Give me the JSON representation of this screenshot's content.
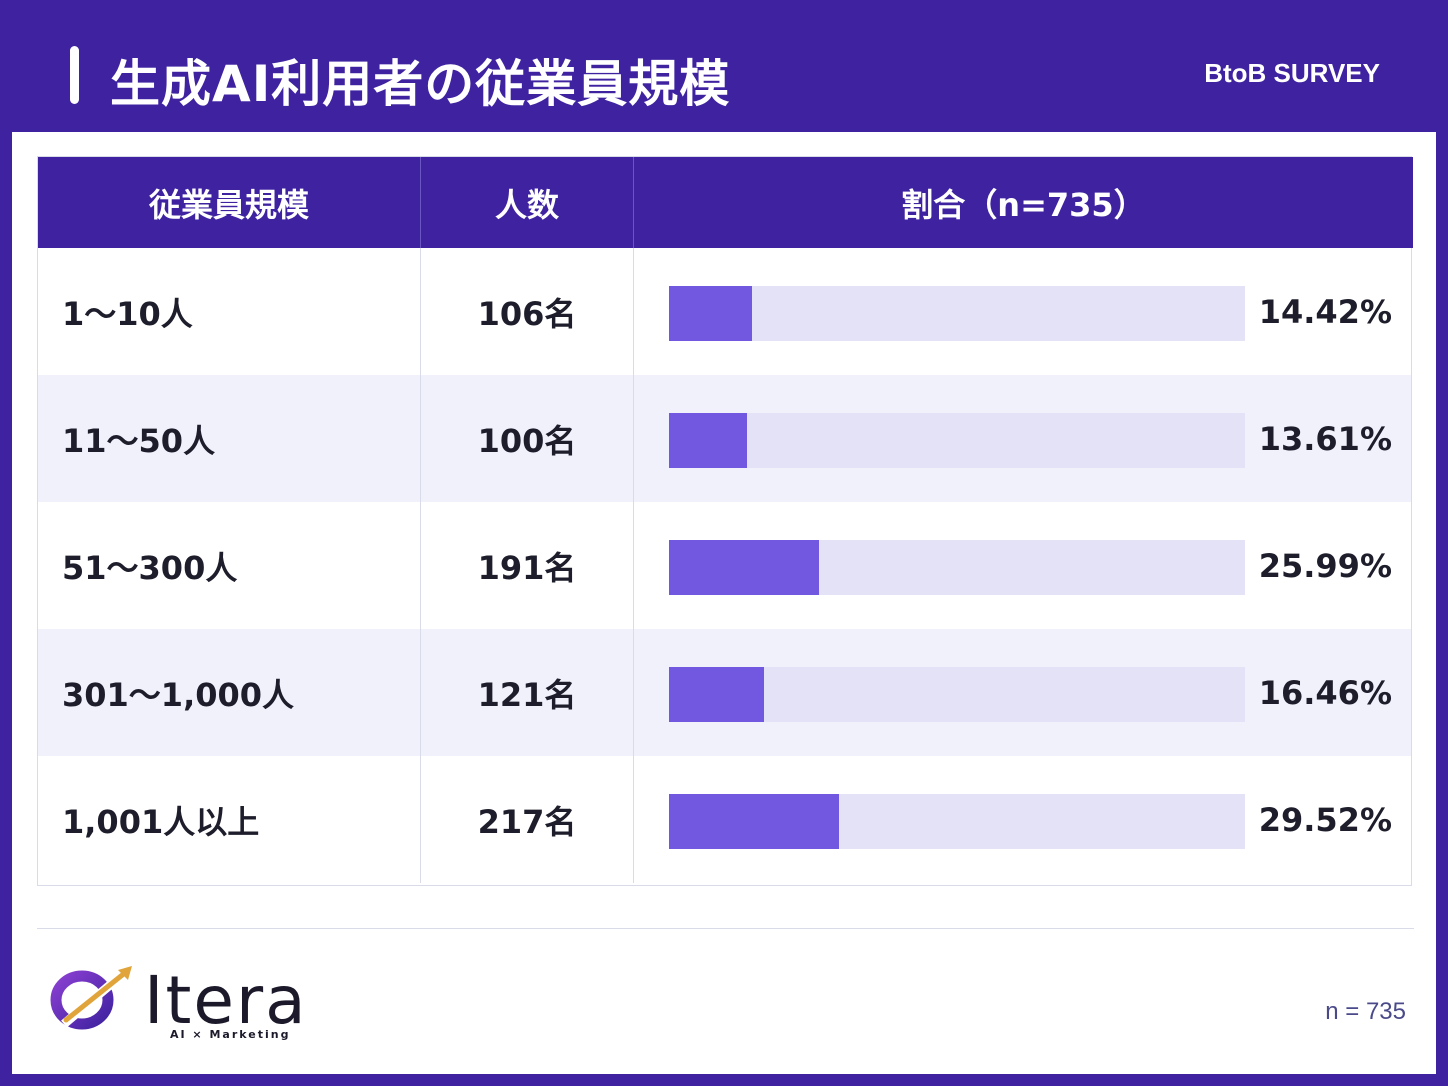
{
  "header": {
    "title": "生成AI利用者の従業員規模",
    "tag": "BtoB SURVEY"
  },
  "table": {
    "columns": [
      "従業員規模",
      "人数",
      "割合（n=735）"
    ]
  },
  "chart_data": {
    "type": "bar",
    "orientation": "horizontal",
    "title": "生成AI利用者の従業員規模",
    "categories": [
      "1〜10人",
      "11〜50人",
      "51〜300人",
      "301〜1,000人",
      "1,001人以上"
    ],
    "counts": [
      "106名",
      "100名",
      "191名",
      "121名",
      "217名"
    ],
    "values": [
      14.42,
      13.61,
      25.99,
      16.46,
      29.52
    ],
    "value_labels": [
      "14.42%",
      "13.61%",
      "25.99%",
      "16.46%",
      "29.52%"
    ],
    "xlim": [
      0,
      100
    ],
    "unit": "%"
  },
  "colors": {
    "brand": "#3f22a0",
    "bar": "#7257e0",
    "track": "#e4e2f7"
  },
  "footer": {
    "logo_text": "Itera",
    "logo_sub": "AI × Marketing",
    "n_note": "n = 735"
  }
}
